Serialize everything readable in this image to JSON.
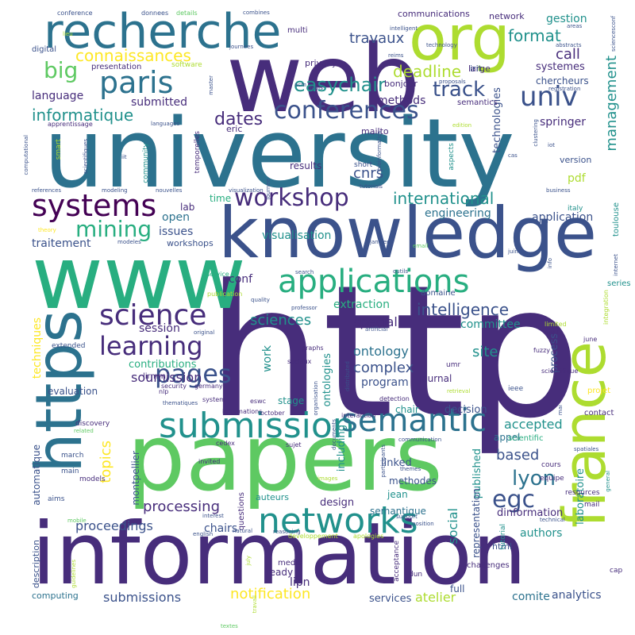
{
  "palette": {
    "c0": "#440154",
    "c1": "#472d7b",
    "c2": "#3b528b",
    "c3": "#2c728e",
    "c4": "#21918c",
    "c5": "#28ae80",
    "c6": "#5ec962",
    "c7": "#addc30",
    "c8": "#fde725"
  },
  "words": [
    {
      "text": "http",
      "color": "c1",
      "size": 230
    },
    {
      "text": "information",
      "color": "c1",
      "size": 108
    },
    {
      "text": "university",
      "color": "c3",
      "size": 120
    },
    {
      "text": "papers",
      "color": "c6",
      "size": 116
    },
    {
      "text": "knowledge",
      "color": "c2",
      "size": 88
    },
    {
      "text": "web",
      "color": "c1",
      "size": 118
    },
    {
      "text": "www",
      "color": "c5",
      "size": 110
    },
    {
      "text": "https",
      "color": "c3",
      "size": 80
    },
    {
      "text": "france",
      "color": "c7",
      "size": 74
    },
    {
      "text": "org",
      "color": "c7",
      "size": 78
    },
    {
      "text": "recherche",
      "color": "c3",
      "size": 60
    },
    {
      "text": "submission",
      "color": "c4",
      "size": 44
    },
    {
      "text": "applications",
      "color": "c5",
      "size": 40
    },
    {
      "text": "networks",
      "color": "c4",
      "size": 44
    },
    {
      "text": "semantic",
      "color": "c3",
      "size": 40
    },
    {
      "text": "paris",
      "color": "c3",
      "size": 38
    },
    {
      "text": "systems",
      "color": "c0",
      "size": 38
    },
    {
      "text": "science",
      "color": "c1",
      "size": 36
    },
    {
      "text": "learning",
      "color": "c1",
      "size": 32
    },
    {
      "text": "pages",
      "color": "c2",
      "size": 32
    },
    {
      "text": "conferences",
      "color": "c2",
      "size": 30
    },
    {
      "text": "workshop",
      "color": "c1",
      "size": 30
    },
    {
      "text": "univ",
      "color": "c2",
      "size": 34
    },
    {
      "text": "egc",
      "color": "c2",
      "size": 30
    },
    {
      "text": "big",
      "color": "c6",
      "size": 28
    },
    {
      "text": "mining",
      "color": "c5",
      "size": 28
    },
    {
      "text": "track",
      "color": "c2",
      "size": 26
    },
    {
      "text": "lyon",
      "color": "c3",
      "size": 26
    },
    {
      "text": "management",
      "color": "c4",
      "size": 18
    },
    {
      "text": "easychair",
      "color": "c4",
      "size": 24
    },
    {
      "text": "connaissances",
      "color": "c8",
      "size": 20
    },
    {
      "text": "informatique",
      "color": "c4",
      "size": 20
    },
    {
      "text": "international",
      "color": "c4",
      "size": 20
    },
    {
      "text": "intelligence",
      "color": "c2",
      "size": 20
    },
    {
      "text": "deadline",
      "color": "c7",
      "size": 20
    },
    {
      "text": "format",
      "color": "c4",
      "size": 20
    },
    {
      "text": "dates",
      "color": "c1",
      "size": 22
    },
    {
      "text": "travaux",
      "color": "c2",
      "size": 18
    },
    {
      "text": "call",
      "color": "c1",
      "size": 18
    },
    {
      "text": "sciences",
      "color": "c4",
      "size": 18
    },
    {
      "text": "complex",
      "color": "c2",
      "size": 18
    },
    {
      "text": "ontology",
      "color": "c3",
      "size": 16
    },
    {
      "text": "site",
      "color": "c4",
      "size": 18
    },
    {
      "text": "topics",
      "color": "c8",
      "size": 18
    },
    {
      "text": "based",
      "color": "c2",
      "size": 18
    },
    {
      "text": "processing",
      "color": "c1",
      "size": 18
    },
    {
      "text": "proceedings",
      "color": "c2",
      "size": 16
    },
    {
      "text": "notification",
      "color": "c8",
      "size": 18
    },
    {
      "text": "submissions",
      "color": "c2",
      "size": 16
    },
    {
      "text": "analytics",
      "color": "c2",
      "size": 14
    },
    {
      "text": "special",
      "color": "c1",
      "size": 16
    },
    {
      "text": "accepted",
      "color": "c4",
      "size": 16
    },
    {
      "text": "soumission",
      "color": "c1",
      "size": 16
    },
    {
      "text": "techniques",
      "color": "c8",
      "size": 14
    },
    {
      "text": "visualisation",
      "color": "c4",
      "size": 14
    },
    {
      "text": "engineering",
      "color": "c3",
      "size": 14
    },
    {
      "text": "application",
      "color": "c2",
      "size": 14
    },
    {
      "text": "extraction",
      "color": "c5",
      "size": 14
    },
    {
      "text": "committee",
      "color": "c4",
      "size": 14
    },
    {
      "text": "methods",
      "color": "c1",
      "size": 14
    },
    {
      "text": "language",
      "color": "c1",
      "size": 14
    },
    {
      "text": "submitted",
      "color": "c1",
      "size": 14
    },
    {
      "text": "technologies",
      "color": "c2",
      "size": 13
    },
    {
      "text": "springer",
      "color": "c1",
      "size": 14
    },
    {
      "text": "systemes",
      "color": "c1",
      "size": 13
    },
    {
      "text": "chercheurs",
      "color": "c2",
      "size": 12
    },
    {
      "text": "gestion",
      "color": "c4",
      "size": 14
    },
    {
      "text": "cnrs",
      "color": "c2",
      "size": 18
    },
    {
      "text": "pdf",
      "color": "c7",
      "size": 14
    },
    {
      "text": "results",
      "color": "c1",
      "size": 12
    },
    {
      "text": "contributions",
      "color": "c5",
      "size": 13
    },
    {
      "text": "session",
      "color": "c1",
      "size": 14
    },
    {
      "text": "traitement",
      "color": "c2",
      "size": 14
    },
    {
      "text": "issues",
      "color": "c2",
      "size": 14
    },
    {
      "text": "open",
      "color": "c3",
      "size": 14
    },
    {
      "text": "lab",
      "color": "c1",
      "size": 12
    },
    {
      "text": "time",
      "color": "c5",
      "size": 12
    },
    {
      "text": "evaluation",
      "color": "c2",
      "size": 12
    },
    {
      "text": "program",
      "color": "c2",
      "size": 14
    },
    {
      "text": "decision",
      "color": "c2",
      "size": 13
    },
    {
      "text": "appel",
      "color": "c3",
      "size": 12
    },
    {
      "text": "chair",
      "color": "c4",
      "size": 12
    },
    {
      "text": "journal",
      "color": "c1",
      "size": 12
    },
    {
      "text": "published",
      "color": "c4",
      "size": 13
    },
    {
      "text": "social",
      "color": "c4",
      "size": 16
    },
    {
      "text": "representation",
      "color": "c2",
      "size": 12
    },
    {
      "text": "including",
      "color": "c4",
      "size": 13
    },
    {
      "text": "ontologies",
      "color": "c4",
      "size": 13
    },
    {
      "text": "work",
      "color": "c4",
      "size": 14
    },
    {
      "text": "automatique",
      "color": "c2",
      "size": 12
    },
    {
      "text": "montpellier",
      "color": "c2",
      "size": 12
    },
    {
      "text": "chairs",
      "color": "c2",
      "size": 14
    },
    {
      "text": "authors",
      "color": "c4",
      "size": 14
    },
    {
      "text": "design",
      "color": "c1",
      "size": 13
    },
    {
      "text": "semantique",
      "color": "c3",
      "size": 12
    },
    {
      "text": "methodes",
      "color": "c2",
      "size": 12
    },
    {
      "text": "linked",
      "color": "c2",
      "size": 13
    },
    {
      "text": "jean",
      "color": "c4",
      "size": 12
    },
    {
      "text": "dinformation",
      "color": "c1",
      "size": 13
    },
    {
      "text": "laboratoire",
      "color": "c4",
      "size": 13
    },
    {
      "text": "process",
      "color": "c2",
      "size": 13
    },
    {
      "text": "conf",
      "color": "c1",
      "size": 14
    },
    {
      "text": "stage",
      "color": "c4",
      "size": 12
    },
    {
      "text": "lipn",
      "color": "c1",
      "size": 14
    },
    {
      "text": "atelier",
      "color": "c7",
      "size": 16
    },
    {
      "text": "comite",
      "color": "c3",
      "size": 14
    },
    {
      "text": "services",
      "color": "c2",
      "size": 13
    },
    {
      "text": "full",
      "color": "c2",
      "size": 12
    },
    {
      "text": "ready",
      "color": "c1",
      "size": 12
    },
    {
      "text": "computing",
      "color": "c3",
      "size": 11
    },
    {
      "text": "html",
      "color": "c2",
      "size": 11
    },
    {
      "text": "description",
      "color": "c2",
      "size": 11
    },
    {
      "text": "workshops",
      "color": "c2",
      "size": 11
    },
    {
      "text": "communications",
      "color": "c1",
      "size": 11
    },
    {
      "text": "network",
      "color": "c1",
      "size": 11
    },
    {
      "text": "privacy",
      "color": "c1",
      "size": 11
    },
    {
      "text": "multi",
      "color": "c1",
      "size": 10
    },
    {
      "text": "digital",
      "color": "c2",
      "size": 10
    },
    {
      "text": "presentation",
      "color": "c1",
      "size": 10
    },
    {
      "text": "large",
      "color": "c1",
      "size": 11
    },
    {
      "text": "irit",
      "color": "c2",
      "size": 11
    },
    {
      "text": "bonjour",
      "color": "c1",
      "size": 11
    },
    {
      "text": "semantics",
      "color": "c1",
      "size": 10
    },
    {
      "text": "eric",
      "color": "c1",
      "size": 11
    },
    {
      "text": "mailto",
      "color": "c1",
      "size": 11
    },
    {
      "text": "version",
      "color": "c2",
      "size": 11
    },
    {
      "text": "italy",
      "color": "c4",
      "size": 9
    },
    {
      "text": "toulouse",
      "color": "c4",
      "size": 10
    },
    {
      "text": "series",
      "color": "c4",
      "size": 10
    },
    {
      "text": "domaine",
      "color": "c2",
      "size": 10
    },
    {
      "text": "projet",
      "color": "c8",
      "size": 10
    },
    {
      "text": "contact",
      "color": "c1",
      "size": 10
    },
    {
      "text": "scientific",
      "color": "c5",
      "size": 10
    },
    {
      "text": "cours",
      "color": "c1",
      "size": 9
    },
    {
      "text": "equipe",
      "color": "c1",
      "size": 9
    },
    {
      "text": "resources",
      "color": "c1",
      "size": 9
    },
    {
      "text": "mail",
      "color": "c1",
      "size": 9
    },
    {
      "text": "cap",
      "color": "c1",
      "size": 9
    },
    {
      "text": "tutorial",
      "color": "c4",
      "size": 9
    },
    {
      "text": "challenges",
      "color": "c1",
      "size": 10
    },
    {
      "text": "media",
      "color": "c1",
      "size": 10
    },
    {
      "text": "dun",
      "color": "c1",
      "size": 9
    },
    {
      "text": "acceptance",
      "color": "c1",
      "size": 9
    },
    {
      "text": "questions",
      "color": "c1",
      "size": 10
    },
    {
      "text": "auteurs",
      "color": "c4",
      "size": 11
    },
    {
      "text": "models",
      "color": "c1",
      "size": 9
    },
    {
      "text": "aims",
      "color": "c2",
      "size": 9
    },
    {
      "text": "main",
      "color": "c2",
      "size": 9
    },
    {
      "text": "march",
      "color": "c2",
      "size": 9
    },
    {
      "text": "discovery",
      "color": "c1",
      "size": 9
    },
    {
      "text": "extended",
      "color": "c2",
      "size": 9
    },
    {
      "text": "lirmm",
      "color": "c1",
      "size": 10
    },
    {
      "text": "security",
      "color": "c1",
      "size": 8
    },
    {
      "text": "nlp",
      "color": "c1",
      "size": 8
    },
    {
      "text": "germany",
      "color": "c1",
      "size": 8
    },
    {
      "text": "system",
      "color": "c1",
      "size": 8
    },
    {
      "text": "eswc",
      "color": "c1",
      "size": 8
    },
    {
      "text": "informations",
      "color": "c1",
      "size": 8
    },
    {
      "text": "october",
      "color": "c1",
      "size": 8
    },
    {
      "text": "invited",
      "color": "c1",
      "size": 8
    },
    {
      "text": "cedex",
      "color": "c1",
      "size": 8
    },
    {
      "text": "sujet",
      "color": "c1",
      "size": 8
    },
    {
      "text": "interaction",
      "color": "c1",
      "size": 8
    },
    {
      "text": "detection",
      "color": "c1",
      "size": 8
    },
    {
      "text": "graphs",
      "color": "c1",
      "size": 8
    },
    {
      "text": "sociaux",
      "color": "c1",
      "size": 8
    },
    {
      "text": "umr",
      "color": "c1",
      "size": 9
    },
    {
      "text": "ieee",
      "color": "c2",
      "size": 9
    },
    {
      "text": "fuzzy",
      "color": "c1",
      "size": 8
    },
    {
      "text": "scientifique",
      "color": "c1",
      "size": 8
    },
    {
      "text": "june",
      "color": "c1",
      "size": 8
    },
    {
      "text": "april",
      "color": "c1",
      "size": 8
    },
    {
      "text": "limited",
      "color": "c7",
      "size": 8
    },
    {
      "text": "conference",
      "color": "c2",
      "size": 8
    },
    {
      "text": "donnees",
      "color": "c2",
      "size": 8
    },
    {
      "text": "details",
      "color": "c6",
      "size": 8
    },
    {
      "text": "combines",
      "color": "c2",
      "size": 7
    },
    {
      "text": "lieu",
      "color": "c7",
      "size": 7
    },
    {
      "text": "journees",
      "color": "c2",
      "size": 7
    },
    {
      "text": "intelligent",
      "color": "c2",
      "size": 7
    },
    {
      "text": "technology",
      "color": "c2",
      "size": 7
    },
    {
      "text": "software",
      "color": "c7",
      "size": 9
    },
    {
      "text": "reims",
      "color": "c2",
      "size": 7
    },
    {
      "text": "areas",
      "color": "c2",
      "size": 7
    },
    {
      "text": "abstracts",
      "color": "c2",
      "size": 7
    },
    {
      "text": "acm",
      "color": "c2",
      "size": 7
    },
    {
      "text": "tools",
      "color": "c2",
      "size": 7
    },
    {
      "text": "proposals",
      "color": "c2",
      "size": 7
    },
    {
      "text": "registration",
      "color": "c2",
      "size": 7
    },
    {
      "text": "apprentissage",
      "color": "c1",
      "size": 8
    },
    {
      "text": "languages",
      "color": "c2",
      "size": 7
    },
    {
      "text": "edition",
      "color": "c7",
      "size": 7
    },
    {
      "text": "iot",
      "color": "c2",
      "size": 7
    },
    {
      "text": "cas",
      "color": "c2",
      "size": 7
    },
    {
      "text": "short",
      "color": "c2",
      "size": 9
    },
    {
      "text": "tutorials",
      "color": "c2",
      "size": 7
    },
    {
      "text": "business",
      "color": "c2",
      "size": 7
    },
    {
      "text": "janvier",
      "color": "c2",
      "size": 7
    },
    {
      "text": "references",
      "color": "c2",
      "size": 7
    },
    {
      "text": "modeling",
      "color": "c2",
      "size": 7
    },
    {
      "text": "nouvelles",
      "color": "c2",
      "size": 7
    },
    {
      "text": "visualization",
      "color": "c2",
      "size": 7
    },
    {
      "text": "sites",
      "color": "c2",
      "size": 7
    },
    {
      "text": "email",
      "color": "c6",
      "size": 7
    },
    {
      "text": "juin",
      "color": "c2",
      "size": 7
    },
    {
      "text": "info",
      "color": "c2",
      "size": 7
    },
    {
      "text": "search",
      "color": "c2",
      "size": 7
    },
    {
      "text": "outils",
      "color": "c2",
      "size": 7
    },
    {
      "text": "publication",
      "color": "c7",
      "size": 8
    },
    {
      "text": "service",
      "color": "c5",
      "size": 8
    },
    {
      "text": "quality",
      "color": "c2",
      "size": 7
    },
    {
      "text": "professor",
      "color": "c2",
      "size": 7
    },
    {
      "text": "artificial",
      "color": "c2",
      "size": 7
    },
    {
      "text": "original",
      "color": "c2",
      "size": 7
    },
    {
      "text": "internet",
      "color": "c2",
      "size": 7
    },
    {
      "text": "communication",
      "color": "c2",
      "size": 7
    },
    {
      "text": "interest",
      "color": "c2",
      "size": 7
    },
    {
      "text": "english",
      "color": "c2",
      "size": 7
    },
    {
      "text": "natural",
      "color": "c2",
      "size": 7
    },
    {
      "text": "support",
      "color": "c2",
      "size": 7
    },
    {
      "text": "position",
      "color": "c2",
      "size": 7
    },
    {
      "text": "technical",
      "color": "c2",
      "size": 7
    },
    {
      "text": "general",
      "color": "c4",
      "size": 7
    },
    {
      "text": "themes",
      "color": "c2",
      "size": 7
    },
    {
      "text": "spatiales",
      "color": "c2",
      "size": 7
    },
    {
      "text": "images",
      "color": "c7",
      "size": 7
    },
    {
      "text": "developpement",
      "color": "c7",
      "size": 8
    },
    {
      "text": "apologies",
      "color": "c7",
      "size": 8
    },
    {
      "text": "reasoning",
      "color": "c2",
      "size": 7
    },
    {
      "text": "mobile",
      "color": "c6",
      "size": 7
    },
    {
      "text": "thematiques",
      "color": "c2",
      "size": 7
    },
    {
      "text": "related",
      "color": "c6",
      "size": 7
    },
    {
      "text": "textes",
      "color": "c6",
      "size": 7
    },
    {
      "text": "travail",
      "color": "c7",
      "size": 7
    },
    {
      "text": "guidelines",
      "color": "c7",
      "size": 7
    },
    {
      "text": "july",
      "color": "c7",
      "size": 7
    },
    {
      "text": "theory",
      "color": "c8",
      "size": 7
    },
    {
      "text": "modeles",
      "color": "c2",
      "size": 7
    },
    {
      "text": "smart",
      "color": "c7",
      "size": 9
    },
    {
      "text": "community",
      "color": "c4",
      "size": 9
    },
    {
      "text": "scientifiques",
      "color": "c2",
      "size": 7
    },
    {
      "text": "iit",
      "color": "c2",
      "size": 7
    },
    {
      "text": "computational",
      "color": "c2",
      "size": 7
    },
    {
      "text": "master",
      "color": "c2",
      "size": 7
    },
    {
      "text": "temporelles",
      "color": "c1",
      "size": 9
    },
    {
      "text": "journee",
      "color": "c2",
      "size": 7
    },
    {
      "text": "bioinformatics",
      "color": "c2",
      "size": 7
    },
    {
      "text": "aspects",
      "color": "c4",
      "size": 9
    },
    {
      "text": "clustering",
      "color": "c2",
      "size": 7
    },
    {
      "text": "integration",
      "color": "c7",
      "size": 8
    },
    {
      "text": "mai",
      "color": "c2",
      "size": 7
    },
    {
      "text": "distributed",
      "color": "c2",
      "size": 7
    },
    {
      "text": "organisation",
      "color": "c2",
      "size": 7
    },
    {
      "text": "documents",
      "color": "c2",
      "size": 7
    },
    {
      "text": "participants",
      "color": "c2",
      "size": 7
    },
    {
      "text": "retrieval",
      "color": "c7",
      "size": 7
    },
    {
      "text": "sciencesconf",
      "color": "c2",
      "size": 7
    }
  ]
}
